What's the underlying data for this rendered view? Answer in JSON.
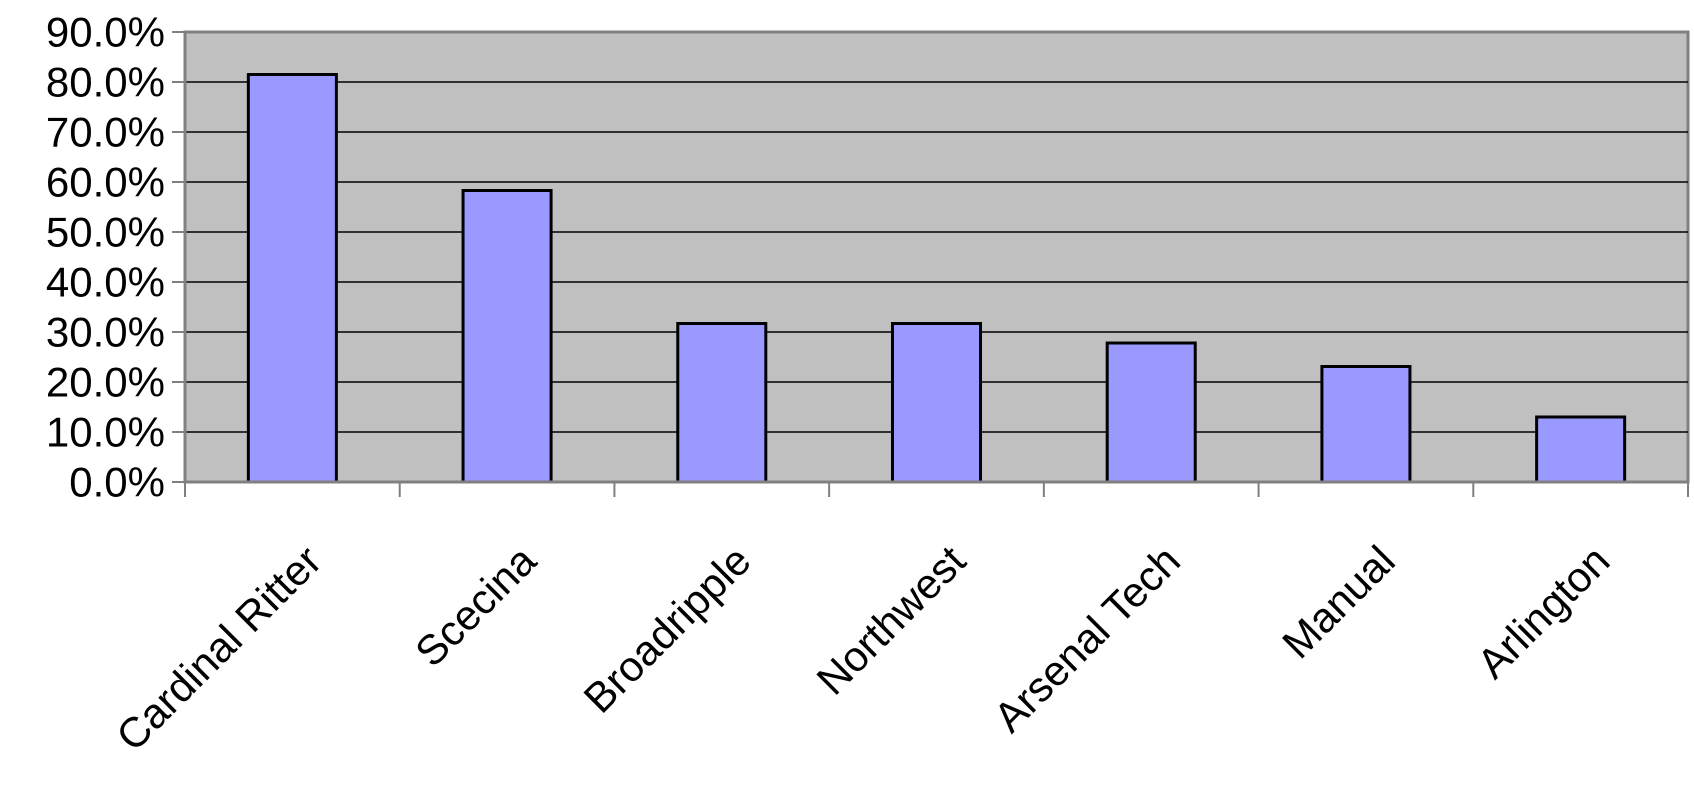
{
  "chart_data": {
    "type": "bar",
    "title": "",
    "xlabel": "",
    "ylabel": "",
    "categories": [
      "Cardinal Ritter",
      "Scecina",
      "Broadripple",
      "Northwest",
      "Arsenal Tech",
      "Manual",
      "Arlington"
    ],
    "values": [
      81.5,
      58.3,
      31.7,
      31.7,
      27.8,
      23.1,
      13.0
    ],
    "ylim": [
      0,
      90
    ],
    "yticks": [
      0,
      10,
      20,
      30,
      40,
      50,
      60,
      70,
      80,
      90
    ],
    "ytick_labels": [
      "0.0%",
      "10.0%",
      "20.0%",
      "30.0%",
      "40.0%",
      "50.0%",
      "60.0%",
      "70.0%",
      "80.0%",
      "90.0%"
    ],
    "grid": true,
    "legend": "none",
    "colors": {
      "plot_background": "#C0C0C0",
      "bar_fill": "#9999FF",
      "bar_stroke": "#000000",
      "gridline": "#000000"
    }
  }
}
